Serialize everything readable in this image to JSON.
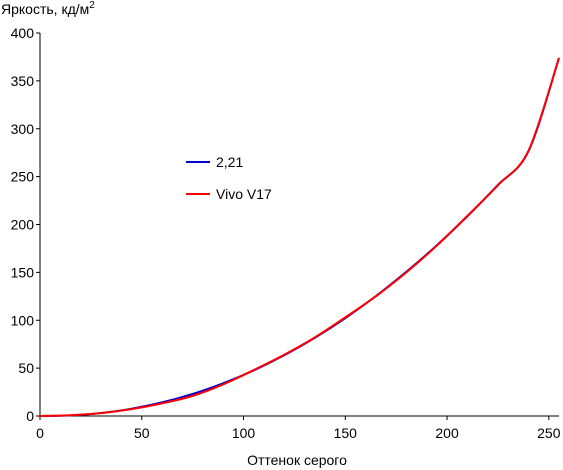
{
  "chart_data": {
    "type": "line",
    "title": "",
    "ylabel": "Яркость, кд/м",
    "ylabel_superscript": "2",
    "xlabel": "Оттенок серого",
    "xlim": [
      0,
      255
    ],
    "ylim": [
      0,
      400
    ],
    "xticks": [
      0,
      50,
      100,
      150,
      200,
      250
    ],
    "yticks": [
      0,
      50,
      100,
      150,
      200,
      250,
      300,
      350,
      400
    ],
    "grid": false,
    "legend_position": "center-left",
    "series": [
      {
        "name": "2,21",
        "color": "#0000cc",
        "x": [
          0,
          15,
          30,
          45,
          60,
          75,
          90,
          105,
          120,
          135,
          150,
          165,
          180,
          195,
          210,
          225,
          240,
          255
        ],
        "y": [
          0,
          0.7,
          3.1,
          7.6,
          14.2,
          23.0,
          34.2,
          47.6,
          63.4,
          81.6,
          102.2,
          125.2,
          150.6,
          178.4,
          208.6,
          241.3,
          276.5,
          374
        ]
      },
      {
        "name": "Vivo V17",
        "color": "#ff0000",
        "x": [
          0,
          15,
          30,
          45,
          60,
          75,
          90,
          105,
          120,
          135,
          150,
          165,
          180,
          195,
          210,
          225,
          240,
          255
        ],
        "y": [
          0,
          0.8,
          3.0,
          7.2,
          13.2,
          21.0,
          33.0,
          48.0,
          64.0,
          82.0,
          103.0,
          125.0,
          150.0,
          178.0,
          209.0,
          241.0,
          277.0,
          374
        ]
      }
    ]
  }
}
